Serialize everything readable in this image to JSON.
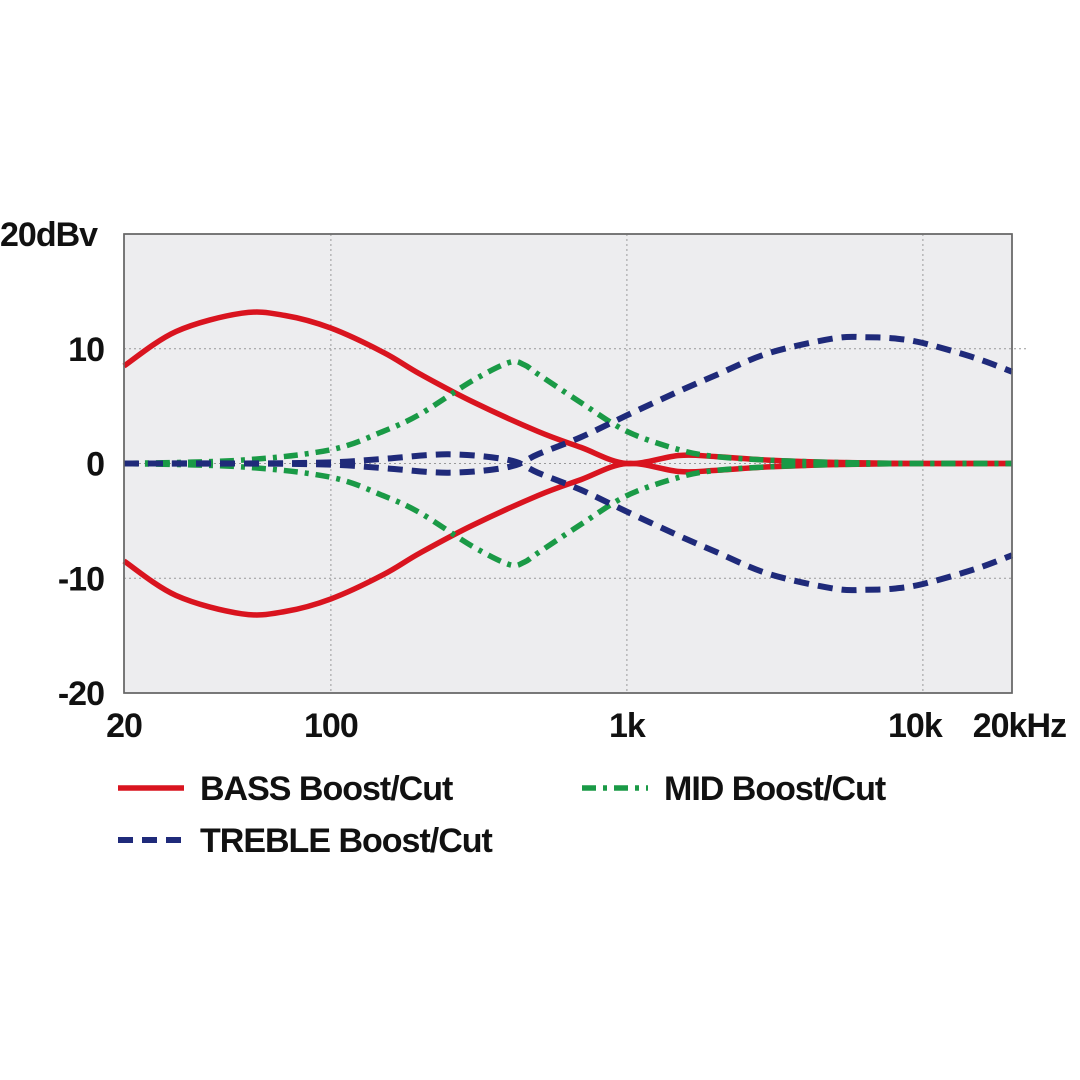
{
  "chart_data": {
    "type": "line",
    "title": "",
    "xlabel": "",
    "ylabel": "",
    "x_scale": "log",
    "xlim": [
      20,
      20000
    ],
    "ylim": [
      -20,
      20
    ],
    "grid": true,
    "legend_position": "bottom",
    "y_ticks": [
      {
        "value": 20,
        "label": "20dBv"
      },
      {
        "value": 10,
        "label": "10"
      },
      {
        "value": 0,
        "label": "0"
      },
      {
        "value": -10,
        "label": "-10"
      },
      {
        "value": -20,
        "label": "-20"
      }
    ],
    "x_ticks": [
      {
        "value": 20,
        "label": "20"
      },
      {
        "value": 100,
        "label": "100"
      },
      {
        "value": 1000,
        "label": "1k"
      },
      {
        "value": 10000,
        "label": "10k"
      },
      {
        "value": 20000,
        "label": "20kHz"
      }
    ],
    "series": [
      {
        "name": "BASS Boost/Cut",
        "color": "#d9141f",
        "style": "solid",
        "curves": [
          {
            "x": [
              20,
              30,
              50,
              70,
              100,
              150,
              200,
              300,
              500,
              700,
              1000,
              1500,
              2000,
              3000,
              5000,
              10000,
              20000
            ],
            "y": [
              8.5,
              11.5,
              13.1,
              12.9,
              11.8,
              9.7,
              7.8,
              5.4,
              2.8,
              1.4,
              0,
              0.7,
              0.6,
              0.3,
              0.1,
              0,
              0
            ]
          },
          {
            "x": [
              20,
              30,
              50,
              70,
              100,
              150,
              200,
              300,
              500,
              700,
              1000,
              1500,
              2000,
              3000,
              5000,
              10000,
              20000
            ],
            "y": [
              -8.5,
              -11.5,
              -13.1,
              -12.9,
              -11.8,
              -9.7,
              -7.8,
              -5.4,
              -2.8,
              -1.4,
              0,
              -0.7,
              -0.6,
              -0.3,
              -0.1,
              0,
              0
            ]
          }
        ]
      },
      {
        "name": "MID Boost/Cut",
        "color": "#1a9a46",
        "style": "dashdot",
        "curves": [
          {
            "x": [
              20,
              50,
              100,
              150,
              200,
              300,
              400,
              450,
              500,
              700,
              1000,
              1500,
              2000,
              3000,
              5000,
              10000,
              20000
            ],
            "y": [
              0,
              0.3,
              1.2,
              2.8,
              4.3,
              7.2,
              8.8,
              8.6,
              7.8,
              5.3,
              2.8,
              1.2,
              0.6,
              0.3,
              0.1,
              0,
              0
            ]
          },
          {
            "x": [
              20,
              50,
              100,
              150,
              200,
              300,
              400,
              450,
              500,
              700,
              1000,
              1500,
              2000,
              3000,
              5000,
              10000,
              20000
            ],
            "y": [
              0,
              -0.3,
              -1.2,
              -2.8,
              -4.3,
              -7.2,
              -8.8,
              -8.6,
              -7.8,
              -5.3,
              -2.8,
              -1.2,
              -0.6,
              -0.3,
              -0.1,
              0,
              0
            ]
          }
        ]
      },
      {
        "name": "TREBLE Boost/Cut",
        "color": "#1f2a7a",
        "style": "dashed",
        "curves": [
          {
            "x": [
              20,
              50,
              100,
              150,
              250,
              400,
              500,
              700,
              1000,
              1500,
              2000,
              3000,
              5000,
              6500,
              8000,
              10000,
              15000,
              20000
            ],
            "y": [
              0,
              0,
              -0.1,
              -0.4,
              -0.8,
              -0.3,
              0.8,
              2.3,
              4.2,
              6.3,
              7.7,
              9.6,
              10.9,
              11.0,
              10.9,
              10.5,
              9.2,
              8.0
            ]
          },
          {
            "x": [
              20,
              50,
              100,
              150,
              250,
              400,
              500,
              700,
              1000,
              1500,
              2000,
              3000,
              5000,
              6500,
              8000,
              10000,
              15000,
              20000
            ],
            "y": [
              0,
              0,
              0.1,
              0.4,
              0.8,
              0.3,
              -0.8,
              -2.3,
              -4.2,
              -6.3,
              -7.7,
              -9.6,
              -10.9,
              -11.0,
              -10.9,
              -10.5,
              -9.2,
              -8.0
            ]
          }
        ]
      }
    ]
  }
}
